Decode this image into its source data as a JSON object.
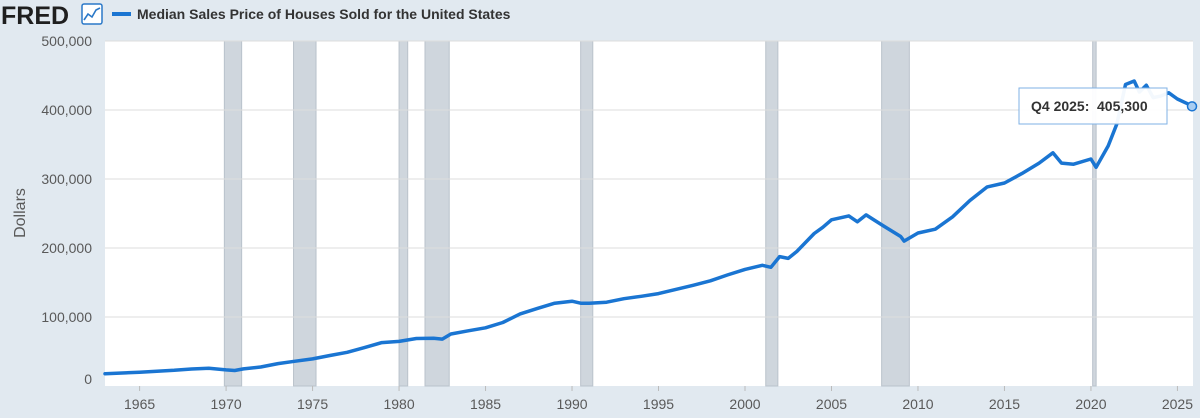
{
  "brand": {
    "name": "FRED"
  },
  "colors": {
    "line": "#1a75d2",
    "recession": "#cfd6dd",
    "plot_bg": "#ffffff",
    "page_bg": "#e1e9f0",
    "grid": "#dddddd"
  },
  "tooltip": {
    "label": "Q4 2025:",
    "value": "405,300"
  },
  "chart_data": {
    "type": "line",
    "title": "Median Sales Price of Houses Sold for the United States",
    "ylabel": "Dollars",
    "xlabel": "",
    "xlim": [
      1963.0,
      2025.9
    ],
    "ylim": [
      0,
      500000
    ],
    "x_ticks": [
      1965,
      1970,
      1975,
      1980,
      1985,
      1990,
      1995,
      2000,
      2005,
      2010,
      2015,
      2020,
      2025
    ],
    "y_ticks": [
      0,
      100000,
      200000,
      300000,
      400000,
      500000
    ],
    "y_tick_labels": [
      "0",
      "100,000",
      "200,000",
      "300,000",
      "400,000",
      "500,000"
    ],
    "recessions": [
      [
        1969.9,
        1970.9
      ],
      [
        1973.9,
        1975.2
      ],
      [
        1980.0,
        1980.5
      ],
      [
        1981.5,
        1982.9
      ],
      [
        1990.5,
        1991.2
      ],
      [
        2001.2,
        2001.9
      ],
      [
        2007.9,
        2009.5
      ],
      [
        2020.1,
        2020.3
      ]
    ],
    "series": [
      {
        "name": "Median Sales Price of Houses Sold for the United States",
        "x": [
          1963.0,
          1964.0,
          1965.0,
          1966.0,
          1967.0,
          1968.0,
          1969.0,
          1970.0,
          1970.5,
          1971.0,
          1972.0,
          1973.0,
          1974.0,
          1975.0,
          1976.0,
          1977.0,
          1978.0,
          1979.0,
          1980.0,
          1981.0,
          1982.0,
          1982.5,
          1983.0,
          1984.0,
          1985.0,
          1986.0,
          1987.0,
          1988.0,
          1989.0,
          1990.0,
          1990.5,
          1991.0,
          1992.0,
          1993.0,
          1994.0,
          1995.0,
          1996.0,
          1997.0,
          1998.0,
          1999.0,
          2000.0,
          2001.0,
          2001.5,
          2002.0,
          2002.5,
          2003.0,
          2004.0,
          2004.5,
          2005.0,
          2006.0,
          2006.5,
          2007.0,
          2007.5,
          2008.0,
          2009.0,
          2009.2,
          2010.0,
          2011.0,
          2012.0,
          2013.0,
          2014.0,
          2015.0,
          2016.0,
          2017.0,
          2017.8,
          2018.3,
          2019.0,
          2020.0,
          2020.3,
          2021.0,
          2021.5,
          2022.0,
          2022.5,
          2022.8,
          2023.2,
          2023.6,
          2024.0,
          2024.5,
          2025.0,
          2025.5,
          2025.9
        ],
        "values": [
          17800,
          18900,
          20000,
          21400,
          22700,
          24700,
          25600,
          23400,
          22500,
          24800,
          27600,
          32500,
          35900,
          39300,
          44200,
          48800,
          55700,
          62900,
          64600,
          68900,
          69300,
          68000,
          75300,
          80000,
          84300,
          92000,
          104500,
          112500,
          120000,
          122900,
          120000,
          120000,
          121500,
          126500,
          130000,
          133900,
          140000,
          146000,
          152500,
          161000,
          169000,
          175000,
          172000,
          187600,
          185000,
          195000,
          221000,
          230000,
          240900,
          246500,
          238000,
          247900,
          240000,
          232100,
          216700,
          210000,
          221800,
          227200,
          245200,
          268900,
          288500,
          294200,
          307800,
          323100,
          338000,
          323000,
          321500,
          329000,
          317000,
          348000,
          380000,
          437000,
          442000,
          426000,
          436000,
          418000,
          420000,
          425000,
          416000,
          410000,
          405300
        ]
      }
    ]
  }
}
